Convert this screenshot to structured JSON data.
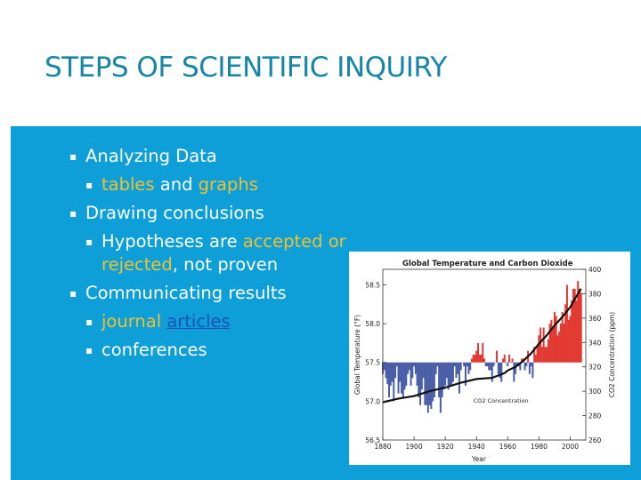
{
  "slide": {
    "title": "STEPS OF SCIENTIFIC INQUIRY",
    "colors": {
      "title": "#1586a8",
      "background": "#0e9fd8",
      "highlight": "#f2c12e",
      "link": "#1d4fb8",
      "text": "#ffffff"
    }
  },
  "bullets": {
    "analyzing": "Analyzing Data",
    "tables": "tables",
    "and": " and ",
    "graphs": "graphs",
    "drawing": "Drawing conclusions",
    "hyp_pre": "Hypotheses are ",
    "accepted_or": "accepted or",
    "rejected": "rejected",
    "hyp_post": ", not proven",
    "communicating": "Communicating results",
    "journal": "journal",
    "articles": "articles",
    "conferences": "conferences"
  },
  "chart_data": {
    "type": "bar",
    "title": "Global Temperature and Carbon Dioxide",
    "xlabel": "Year",
    "ylabel_left": "Global Temperature (°F)",
    "ylabel_right": "CO2 Concentration (ppm)",
    "x_ticks": [
      "1880",
      "1900",
      "1920",
      "1940",
      "1960",
      "1980",
      "2000"
    ],
    "y_left_ticks": [
      "56.5",
      "57.0",
      "57.5",
      "58.0",
      "58.5"
    ],
    "y_right_ticks": [
      "260",
      "280",
      "300",
      "320",
      "340",
      "360",
      "380",
      "400"
    ],
    "xlim": [
      1880,
      2010
    ],
    "ylim_left": [
      56.5,
      58.7
    ],
    "ylim_right": [
      260,
      400
    ],
    "baseline_left": 57.5,
    "annotation": "CO2 Concentration",
    "series": [
      {
        "name": "temperature",
        "colors": {
          "above": "#e23a32",
          "below": "#4a5ea8"
        },
        "x": [
          1880,
          1881,
          1882,
          1883,
          1884,
          1885,
          1886,
          1887,
          1888,
          1889,
          1890,
          1891,
          1892,
          1893,
          1894,
          1895,
          1896,
          1897,
          1898,
          1899,
          1900,
          1901,
          1902,
          1903,
          1904,
          1905,
          1906,
          1907,
          1908,
          1909,
          1910,
          1911,
          1912,
          1913,
          1914,
          1915,
          1916,
          1917,
          1918,
          1919,
          1920,
          1921,
          1922,
          1923,
          1924,
          1925,
          1926,
          1927,
          1928,
          1929,
          1930,
          1931,
          1932,
          1933,
          1934,
          1935,
          1936,
          1937,
          1938,
          1939,
          1940,
          1941,
          1942,
          1943,
          1944,
          1945,
          1946,
          1947,
          1948,
          1949,
          1950,
          1951,
          1952,
          1953,
          1954,
          1955,
          1956,
          1957,
          1958,
          1959,
          1960,
          1961,
          1962,
          1963,
          1964,
          1965,
          1966,
          1967,
          1968,
          1969,
          1970,
          1971,
          1972,
          1973,
          1974,
          1975,
          1976,
          1977,
          1978,
          1979,
          1980,
          1981,
          1982,
          1983,
          1984,
          1985,
          1986,
          1987,
          1988,
          1989,
          1990,
          1991,
          1992,
          1993,
          1994,
          1995,
          1996,
          1997,
          1998,
          1999,
          2000,
          2001,
          2002,
          2003,
          2004,
          2005,
          2006,
          2007
        ],
        "values": [
          57.35,
          57.4,
          57.3,
          57.22,
          57.05,
          57.2,
          57.25,
          57.0,
          57.3,
          57.45,
          57.1,
          57.25,
          57.1,
          57.05,
          57.15,
          57.2,
          57.35,
          57.4,
          57.2,
          57.3,
          57.45,
          57.35,
          57.2,
          57.05,
          56.95,
          57.15,
          57.3,
          56.95,
          56.95,
          56.85,
          56.95,
          56.9,
          57.0,
          57.05,
          57.35,
          57.45,
          57.05,
          56.85,
          57.05,
          57.15,
          57.2,
          57.3,
          57.15,
          57.2,
          57.2,
          57.25,
          57.45,
          57.3,
          57.35,
          57.1,
          57.4,
          57.5,
          57.45,
          57.2,
          57.45,
          57.35,
          57.4,
          57.55,
          57.6,
          57.6,
          57.65,
          57.75,
          57.6,
          57.6,
          57.75,
          57.55,
          57.45,
          57.45,
          57.4,
          57.4,
          57.25,
          57.45,
          57.5,
          57.65,
          57.35,
          57.3,
          57.25,
          57.55,
          57.6,
          57.5,
          57.45,
          57.6,
          57.5,
          57.55,
          57.25,
          57.35,
          57.45,
          57.45,
          57.4,
          57.55,
          57.55,
          57.4,
          57.45,
          57.65,
          57.35,
          57.45,
          57.3,
          57.7,
          57.6,
          57.7,
          57.85,
          57.95,
          57.7,
          57.95,
          57.7,
          57.7,
          57.8,
          58.0,
          58.05,
          57.95,
          58.15,
          58.1,
          57.85,
          57.9,
          58.0,
          58.15,
          58.0,
          58.25,
          58.5,
          58.05,
          58.1,
          58.3,
          58.45,
          58.45,
          58.3,
          58.55,
          58.45,
          58.4
        ]
      },
      {
        "name": "CO2 Concentration",
        "color": "#111111",
        "x": [
          1880,
          1890,
          1900,
          1910,
          1920,
          1930,
          1940,
          1950,
          1958,
          1960,
          1965,
          1970,
          1975,
          1980,
          1985,
          1990,
          1995,
          2000,
          2005,
          2007
        ],
        "values": [
          291,
          294,
          296,
          300,
          303,
          307,
          310,
          311,
          315,
          317,
          320,
          325,
          331,
          339,
          346,
          354,
          361,
          369,
          380,
          384
        ]
      }
    ]
  }
}
